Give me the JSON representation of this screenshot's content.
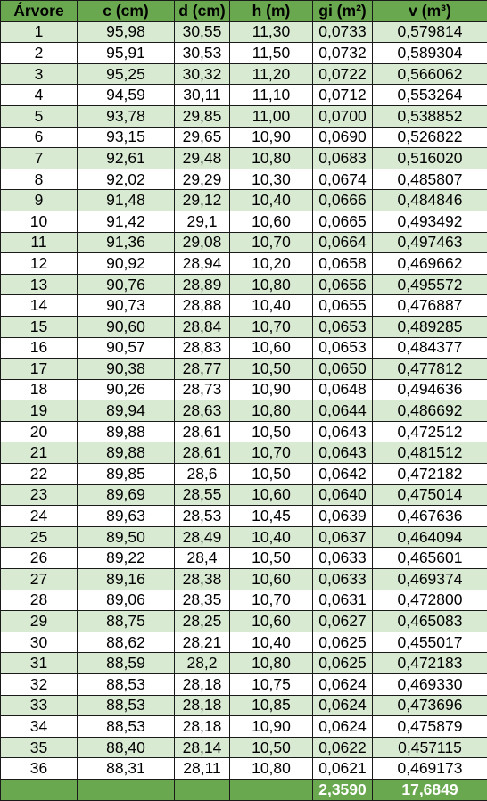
{
  "columns": [
    "Árvore",
    "c (cm)",
    "d (cm)",
    "h (m)",
    "gi (m²)",
    "v (m³)"
  ],
  "rows": [
    [
      "1",
      "95,98",
      "30,55",
      "11,30",
      "0,0733",
      "0,579814"
    ],
    [
      "2",
      "95,91",
      "30,53",
      "11,50",
      "0,0732",
      "0,589304"
    ],
    [
      "3",
      "95,25",
      "30,32",
      "11,20",
      "0,0722",
      "0,566062"
    ],
    [
      "4",
      "94,59",
      "30,11",
      "11,10",
      "0,0712",
      "0,553264"
    ],
    [
      "5",
      "93,78",
      "29,85",
      "11,00",
      "0,0700",
      "0,538852"
    ],
    [
      "6",
      "93,15",
      "29,65",
      "10,90",
      "0,0690",
      "0,526822"
    ],
    [
      "7",
      "92,61",
      "29,48",
      "10,80",
      "0,0683",
      "0,516020"
    ],
    [
      "8",
      "92,02",
      "29,29",
      "10,30",
      "0,0674",
      "0,485807"
    ],
    [
      "9",
      "91,48",
      "29,12",
      "10,40",
      "0,0666",
      "0,484846"
    ],
    [
      "10",
      "91,42",
      "29,1",
      "10,60",
      "0,0665",
      "0,493492"
    ],
    [
      "11",
      "91,36",
      "29,08",
      "10,70",
      "0,0664",
      "0,497463"
    ],
    [
      "12",
      "90,92",
      "28,94",
      "10,20",
      "0,0658",
      "0,469662"
    ],
    [
      "13",
      "90,76",
      "28,89",
      "10,80",
      "0,0656",
      "0,495572"
    ],
    [
      "14",
      "90,73",
      "28,88",
      "10,40",
      "0,0655",
      "0,476887"
    ],
    [
      "15",
      "90,60",
      "28,84",
      "10,70",
      "0,0653",
      "0,489285"
    ],
    [
      "16",
      "90,57",
      "28,83",
      "10,60",
      "0,0653",
      "0,484377"
    ],
    [
      "17",
      "90,38",
      "28,77",
      "10,50",
      "0,0650",
      "0,477812"
    ],
    [
      "18",
      "90,26",
      "28,73",
      "10,90",
      "0,0648",
      "0,494636"
    ],
    [
      "19",
      "89,94",
      "28,63",
      "10,80",
      "0,0644",
      "0,486692"
    ],
    [
      "20",
      "89,88",
      "28,61",
      "10,50",
      "0,0643",
      "0,472512"
    ],
    [
      "21",
      "89,88",
      "28,61",
      "10,70",
      "0,0643",
      "0,481512"
    ],
    [
      "22",
      "89,85",
      "28,6",
      "10,50",
      "0,0642",
      "0,472182"
    ],
    [
      "23",
      "89,69",
      "28,55",
      "10,60",
      "0,0640",
      "0,475014"
    ],
    [
      "24",
      "89,63",
      "28,53",
      "10,45",
      "0,0639",
      "0,467636"
    ],
    [
      "25",
      "89,50",
      "28,49",
      "10,40",
      "0,0637",
      "0,464094"
    ],
    [
      "26",
      "89,22",
      "28,4",
      "10,50",
      "0,0633",
      "0,465601"
    ],
    [
      "27",
      "89,16",
      "28,38",
      "10,60",
      "0,0633",
      "0,469374"
    ],
    [
      "28",
      "89,06",
      "28,35",
      "10,70",
      "0,0631",
      "0,472800"
    ],
    [
      "29",
      "88,75",
      "28,25",
      "10,60",
      "0,0627",
      "0,465083"
    ],
    [
      "30",
      "88,62",
      "28,21",
      "10,40",
      "0,0625",
      "0,455017"
    ],
    [
      "31",
      "88,59",
      "28,2",
      "10,80",
      "0,0625",
      "0,472183"
    ],
    [
      "32",
      "88,53",
      "28,18",
      "10,75",
      "0,0624",
      "0,469330"
    ],
    [
      "33",
      "88,53",
      "28,18",
      "10,85",
      "0,0624",
      "0,473696"
    ],
    [
      "34",
      "88,53",
      "28,18",
      "10,90",
      "0,0624",
      "0,475879"
    ],
    [
      "35",
      "88,40",
      "28,14",
      "10,50",
      "0,0622",
      "0,457115"
    ],
    [
      "36",
      "88,31",
      "28,11",
      "10,80",
      "0,0621",
      "0,469173"
    ]
  ],
  "totals": [
    "",
    "",
    "",
    "",
    "2,3590",
    "17,6849"
  ],
  "colors": {
    "header_bg": "#6aa84f",
    "alt_row_bg": "#d9ead3",
    "plain_row_bg": "#ffffff",
    "total_text": "#ffffff"
  }
}
